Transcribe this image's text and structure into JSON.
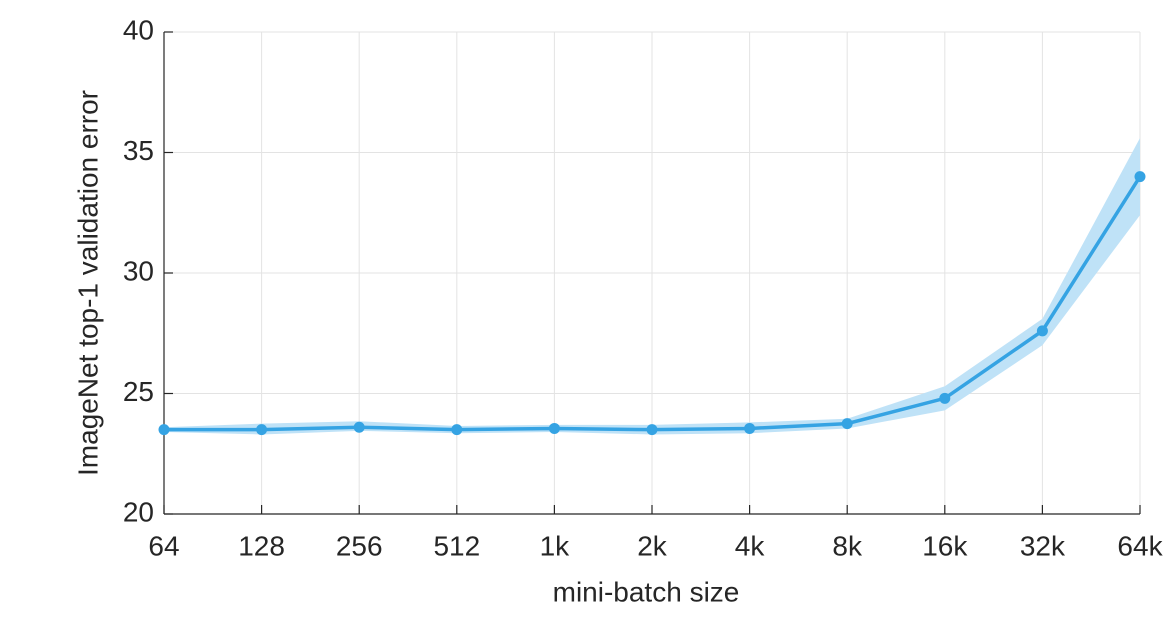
{
  "chart_data": {
    "type": "line",
    "xlabel": "mini-batch size",
    "ylabel": "ImageNet top-1 validation error",
    "categories": [
      "64",
      "128",
      "256",
      "512",
      "1k",
      "2k",
      "4k",
      "8k",
      "16k",
      "32k",
      "64k"
    ],
    "values": [
      23.5,
      23.5,
      23.6,
      23.5,
      23.55,
      23.5,
      23.55,
      23.75,
      24.8,
      27.6,
      34.0
    ],
    "band_lower": [
      23.4,
      23.3,
      23.45,
      23.35,
      23.4,
      23.3,
      23.35,
      23.55,
      24.3,
      27.0,
      32.4
    ],
    "band_upper": [
      23.6,
      23.75,
      23.85,
      23.65,
      23.7,
      23.7,
      23.8,
      23.95,
      25.3,
      28.1,
      35.6
    ],
    "color": "#35a3e3",
    "band_color": "#bfe2f7",
    "ylim": [
      20,
      40
    ],
    "yticks": [
      20,
      25,
      30,
      35,
      40
    ],
    "grid": true
  }
}
